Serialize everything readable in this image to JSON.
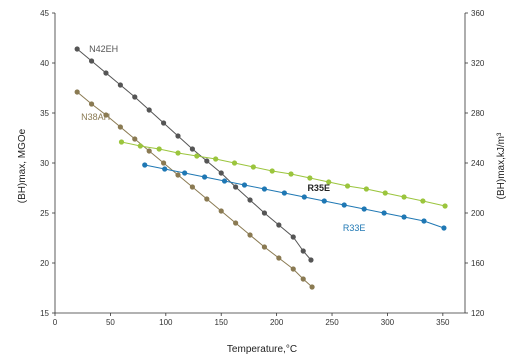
{
  "chart_data": {
    "type": "line",
    "title": "",
    "xlabel": "Temperature,°C",
    "ylabel": "(BH)max, MGOe",
    "y2label": "(BH)max,kJ/m³",
    "xlim": [
      0,
      370
    ],
    "ylim": [
      15,
      45
    ],
    "y2lim": [
      120,
      360
    ],
    "xticks": [
      "0",
      "50",
      "100",
      "150",
      "200",
      "250",
      "300",
      "350"
    ],
    "yticks": [
      "15",
      "20",
      "25",
      "30",
      "35",
      "40",
      "45"
    ],
    "y2ticks": [
      "120",
      "160",
      "200",
      "240",
      "280",
      "320",
      "360"
    ],
    "grid": false,
    "series": [
      {
        "name": "N42EH",
        "color": "#555555",
        "x": [
          20,
          33,
          46,
          59,
          72,
          85,
          98,
          111,
          124,
          137,
          150,
          163,
          176,
          189,
          202,
          215,
          224,
          231
        ],
        "y": [
          41.4,
          40.2,
          39.0,
          37.8,
          36.6,
          35.3,
          34.0,
          32.7,
          31.4,
          30.2,
          29.0,
          27.6,
          26.3,
          25.0,
          23.8,
          22.6,
          21.2,
          20.3
        ]
      },
      {
        "name": "N38AH",
        "color": "#8a7a52",
        "x": [
          20,
          33,
          46,
          59,
          72,
          85,
          98,
          111,
          124,
          137,
          150,
          163,
          176,
          189,
          202,
          215,
          224,
          232
        ],
        "y": [
          37.1,
          35.9,
          34.8,
          33.6,
          32.4,
          31.2,
          30.0,
          28.8,
          27.6,
          26.4,
          25.2,
          24.0,
          22.8,
          21.6,
          20.5,
          19.4,
          18.4,
          17.6
        ]
      },
      {
        "name": "R35E",
        "color": "#9bc53d",
        "x": [
          60,
          77,
          94,
          111,
          128,
          145,
          162,
          179,
          196,
          213,
          230,
          247,
          264,
          281,
          298,
          315,
          332,
          352
        ],
        "y": [
          32.1,
          31.7,
          31.4,
          31.0,
          30.7,
          30.4,
          30.0,
          29.6,
          29.2,
          28.9,
          28.5,
          28.1,
          27.7,
          27.4,
          27.0,
          26.6,
          26.2,
          25.7
        ]
      },
      {
        "name": "R33E",
        "color": "#1f78b4",
        "x": [
          81,
          99,
          117,
          135,
          153,
          171,
          189,
          207,
          225,
          243,
          261,
          279,
          297,
          315,
          333,
          351
        ],
        "y": [
          29.8,
          29.4,
          29.0,
          28.6,
          28.2,
          27.8,
          27.4,
          27.0,
          26.6,
          26.2,
          25.8,
          25.4,
          25.0,
          24.6,
          24.2,
          23.5
        ]
      }
    ]
  }
}
